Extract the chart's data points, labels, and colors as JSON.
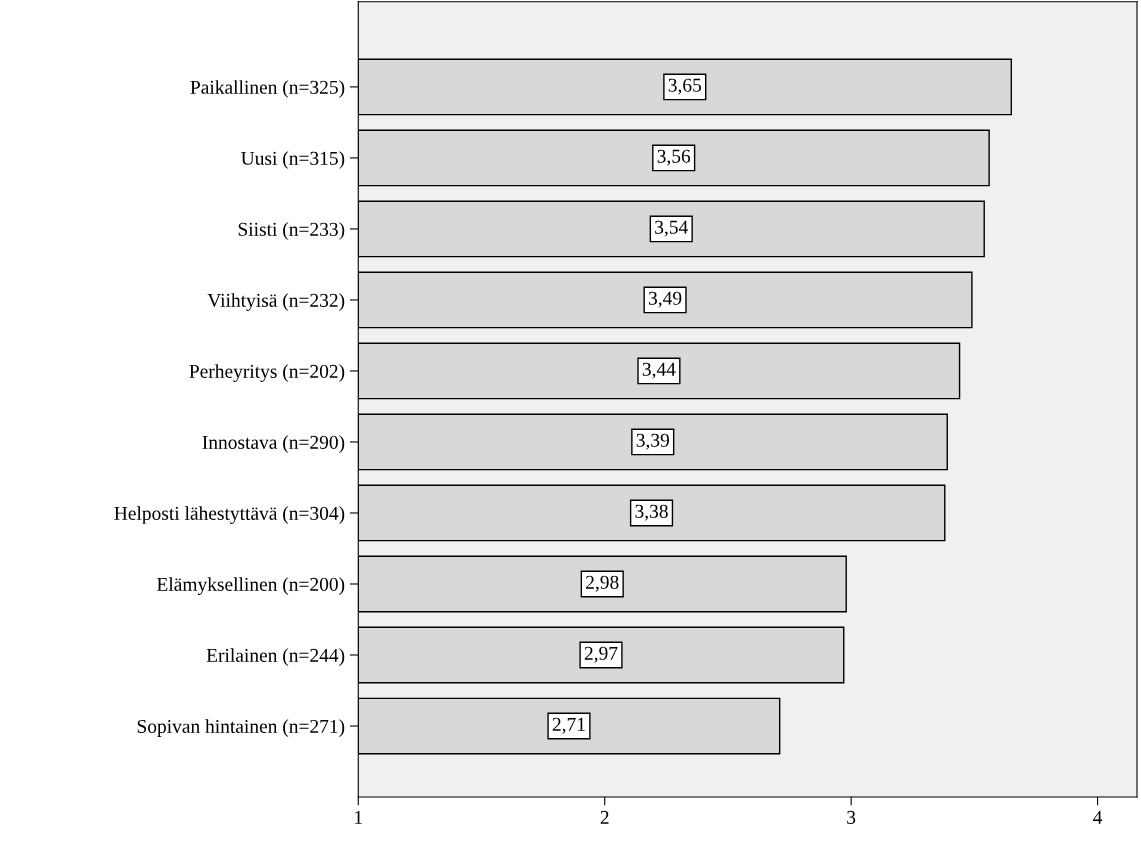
{
  "chart_data": {
    "type": "bar",
    "orientation": "horizontal",
    "categories": [
      "Paikallinen (n=325)",
      "Uusi (n=315)",
      "Siisti (n=233)",
      "Viihtyisä (n=232)",
      "Perheyritys (n=202)",
      "Innostava (n=290)",
      "Helposti lähestyttävä (n=304)",
      "Elämyksellinen (n=200)",
      "Erilainen (n=244)",
      "Sopivan hintainen (n=271)"
    ],
    "values": [
      3.65,
      3.56,
      3.54,
      3.49,
      3.44,
      3.39,
      3.38,
      2.98,
      2.97,
      2.71
    ],
    "value_labels": [
      "3,65",
      "3,56",
      "3,54",
      "3,49",
      "3,44",
      "3,39",
      "3,38",
      "2,98",
      "2,97",
      "2,71"
    ],
    "color": "#d8d8d8",
    "xlim": [
      1,
      4.16
    ],
    "xticks": [
      1,
      2,
      3,
      4
    ],
    "grid": false
  }
}
